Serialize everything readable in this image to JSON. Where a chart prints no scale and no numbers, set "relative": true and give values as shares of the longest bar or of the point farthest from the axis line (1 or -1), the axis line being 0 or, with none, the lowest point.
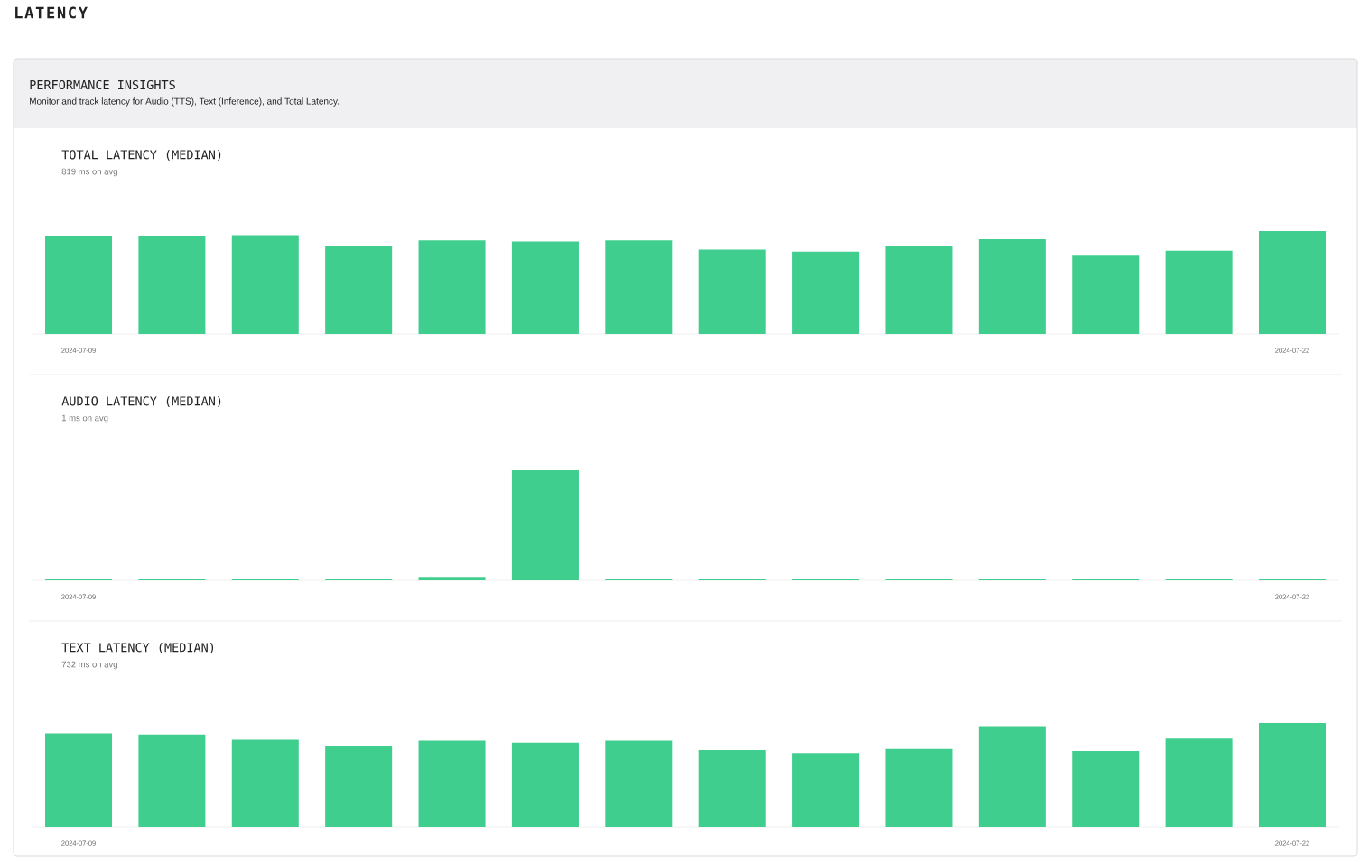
{
  "chart_data": [
    {
      "type": "other",
      "title": "PERFORMANCE INSIGHTS",
      "subtitle": "Monitor and track latency for Audio (TTS), Text (Inference), and Total Latency.",
      "annotations": [
        "LATENCY"
      ]
    },
    {
      "type": "bar",
      "title": "TOTAL LATENCY (MEDIAN)",
      "subtitle": "819 ms on avg",
      "categories": [
        "2024-07-09",
        null,
        null,
        null,
        null,
        null,
        null,
        null,
        null,
        null,
        null,
        null,
        null,
        "2024-07-22"
      ],
      "values": [
        0.95,
        0.95,
        0.96,
        0.86,
        0.91,
        0.9,
        0.91,
        0.82,
        0.8,
        0.85,
        0.92,
        0.76,
        0.81,
        1
      ],
      "color": "#40ce8e",
      "relative": true
    },
    {
      "type": "bar",
      "title": "AUDIO LATENCY (MEDIAN)",
      "subtitle": "1 ms on avg",
      "categories": [
        "2024-07-09",
        null,
        null,
        null,
        null,
        null,
        null,
        null,
        null,
        null,
        null,
        null,
        null,
        "2024-07-22"
      ],
      "values": [
        0.01,
        0.01,
        0.01,
        0.01,
        0.03,
        1,
        0.01,
        0.01,
        0.01,
        0.01,
        0.01,
        0.01,
        0.01,
        0.01
      ],
      "color": "#40ce8e",
      "relative": true
    },
    {
      "type": "bar",
      "title": "TEXT LATENCY (MEDIAN)",
      "subtitle": "732 ms on avg",
      "categories": [
        "2024-07-09",
        null,
        null,
        null,
        null,
        null,
        null,
        null,
        null,
        null,
        null,
        null,
        null,
        "2024-07-22"
      ],
      "values": [
        0.9,
        0.89,
        0.84,
        0.78,
        0.83,
        0.81,
        0.83,
        0.74,
        0.71,
        0.75,
        0.97,
        0.73,
        0.85,
        1
      ],
      "color": "#40ce8e",
      "relative": true
    }
  ]
}
